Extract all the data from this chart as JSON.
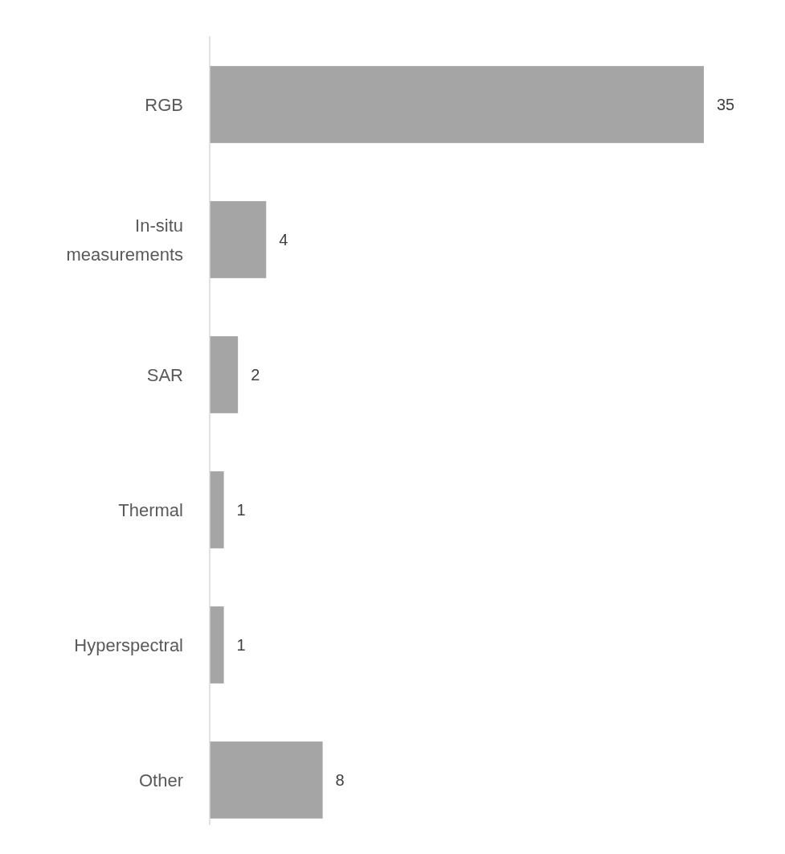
{
  "chart_data": {
    "type": "bar",
    "orientation": "horizontal",
    "categories": [
      "RGB",
      "In-situ measurements",
      "SAR",
      "Thermal",
      "Hyperspectral",
      "Other"
    ],
    "values": [
      35,
      4,
      2,
      1,
      1,
      8
    ],
    "color": "#a5a5a5",
    "data_labels": true
  }
}
